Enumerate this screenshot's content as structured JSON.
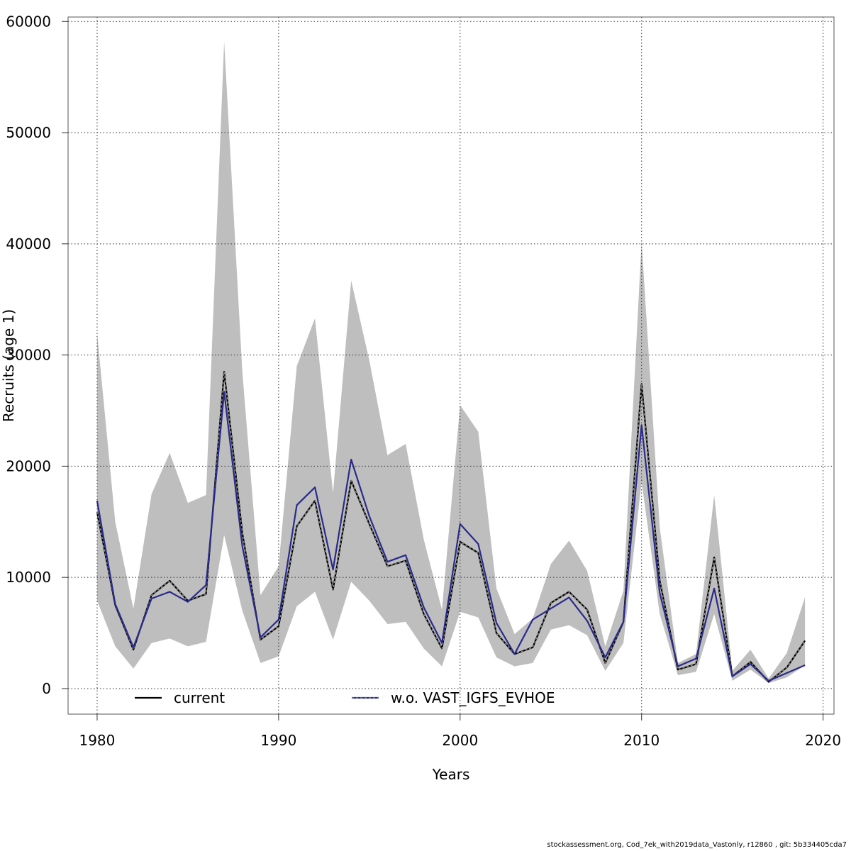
{
  "chart_data": {
    "type": "line",
    "title": "",
    "xlabel": "Years",
    "ylabel": "Recruits (age 1)",
    "xlim": [
      1978.4,
      2020.6
    ],
    "ylim": [
      -2300,
      60400
    ],
    "x_ticks": [
      1980,
      1990,
      2000,
      2010,
      2020
    ],
    "y_ticks": [
      0,
      10000,
      20000,
      30000,
      40000,
      50000,
      60000
    ],
    "grid": true,
    "legend_position": "bottom",
    "x": [
      1980,
      1981,
      1982,
      1983,
      1984,
      1985,
      1986,
      1987,
      1988,
      1989,
      1990,
      1991,
      1992,
      1993,
      1994,
      1995,
      1996,
      1997,
      1998,
      1999,
      2000,
      2001,
      2002,
      2003,
      2004,
      2005,
      2006,
      2007,
      2008,
      2009,
      2010,
      2011,
      2012,
      2013,
      2014,
      2015,
      2016,
      2017,
      2018,
      2019
    ],
    "confidence_band": {
      "series": "current",
      "color": "#bebebe",
      "upper": [
        32000,
        15000,
        7200,
        17500,
        21200,
        16700,
        17400,
        58200,
        28500,
        8400,
        11000,
        29000,
        33300,
        17600,
        36700,
        29500,
        21000,
        22000,
        13400,
        7100,
        25500,
        23100,
        9000,
        4900,
        6300,
        11200,
        13300,
        10600,
        3800,
        8800,
        40200,
        14500,
        2300,
        3100,
        17400,
        1600,
        3500,
        900,
        3200,
        8200
      ],
      "lower": [
        7900,
        3800,
        1800,
        4100,
        4500,
        3800,
        4200,
        13800,
        7000,
        2300,
        2900,
        7400,
        8700,
        4400,
        9600,
        7900,
        5800,
        6000,
        3600,
        2000,
        6900,
        6400,
        2800,
        2000,
        2300,
        5300,
        5700,
        4800,
        1600,
        4100,
        18600,
        6700,
        1200,
        1500,
        6700,
        700,
        1700,
        500,
        1000,
        2100
      ]
    },
    "series": [
      {
        "name": "current",
        "color": "#000000",
        "dashed_overlay": true,
        "values": [
          15900,
          7500,
          3500,
          8400,
          9700,
          7900,
          8500,
          28500,
          14000,
          4400,
          5600,
          14600,
          16900,
          8900,
          18700,
          14800,
          11000,
          11500,
          6700,
          3600,
          13200,
          12200,
          5000,
          3100,
          3700,
          7700,
          8700,
          7100,
          2300,
          6000,
          27400,
          9700,
          1700,
          2200,
          11800,
          1100,
          2400,
          600,
          1900,
          4300
        ]
      },
      {
        "name": "w.o. VAST_IGFS_EVHOE",
        "color": "#2a2a8a",
        "dashed_overlay": false,
        "values": [
          16900,
          7600,
          3700,
          8100,
          8700,
          7800,
          9300,
          26700,
          12800,
          4600,
          6200,
          16500,
          18100,
          10700,
          20600,
          15500,
          11400,
          12000,
          7300,
          4100,
          14800,
          13000,
          5900,
          3100,
          6200,
          7200,
          8200,
          6100,
          2800,
          6000,
          23700,
          8600,
          2000,
          2700,
          9000,
          1100,
          2200,
          700,
          1400,
          2100
        ]
      }
    ]
  },
  "footer_text": "stockassessment.org, Cod_7ek_with2019data_Vastonly, r12860 , git: 5b334405cda7"
}
